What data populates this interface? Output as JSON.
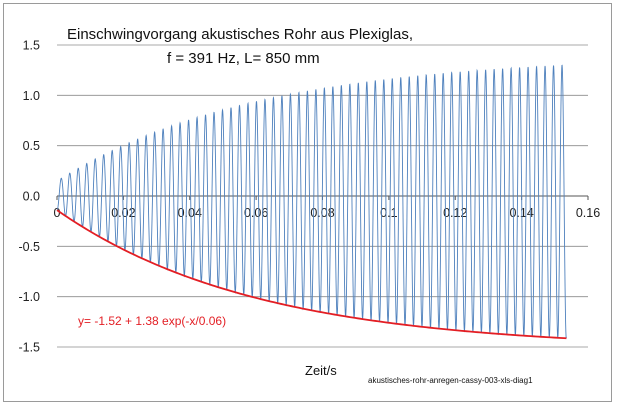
{
  "chart_data": {
    "type": "line",
    "title_line1": "Einschwingvorgang akustisches Rohr aus Plexiglas,",
    "title_line2": "f = 391 Hz, L= 850 mm",
    "xlabel": "Zeit/s",
    "ylabel": "",
    "xlim": [
      0,
      0.16
    ],
    "ylim": [
      -1.5,
      1.5
    ],
    "x_ticks": [
      "0",
      "0.02",
      "0.04",
      "0.06",
      "0.08",
      "0.1",
      "0.12",
      "0.14",
      "0.16"
    ],
    "y_ticks": [
      "1.5",
      "1.0",
      "0.5",
      "0.0",
      "-0.5",
      "-1.0",
      "-1.5"
    ],
    "grid": "horizontal",
    "footnote": "akustisches-rohr-anregen-cassy-003-xls-diag1",
    "series": [
      {
        "color": "#4f81bd",
        "frequency_hz": 391,
        "x_range": [
          0,
          0.1535
        ],
        "upper_envelope": {
          "asymptote": 1.4,
          "start": 0.15,
          "tau": 0.06
        },
        "lower_envelope": {
          "asymptote": -1.52,
          "amplitude": 1.38,
          "tau": 0.06
        }
      },
      {
        "name": "y= -1.52 + 1.38 exp(-x/0.06)",
        "color": "#e31e24",
        "formula": {
          "a": -1.52,
          "b": 1.38,
          "tau": 0.06
        },
        "x_range": [
          0,
          0.1535
        ]
      }
    ],
    "annotation": "y= -1.52 + 1.38 exp(-x/0.06)"
  }
}
